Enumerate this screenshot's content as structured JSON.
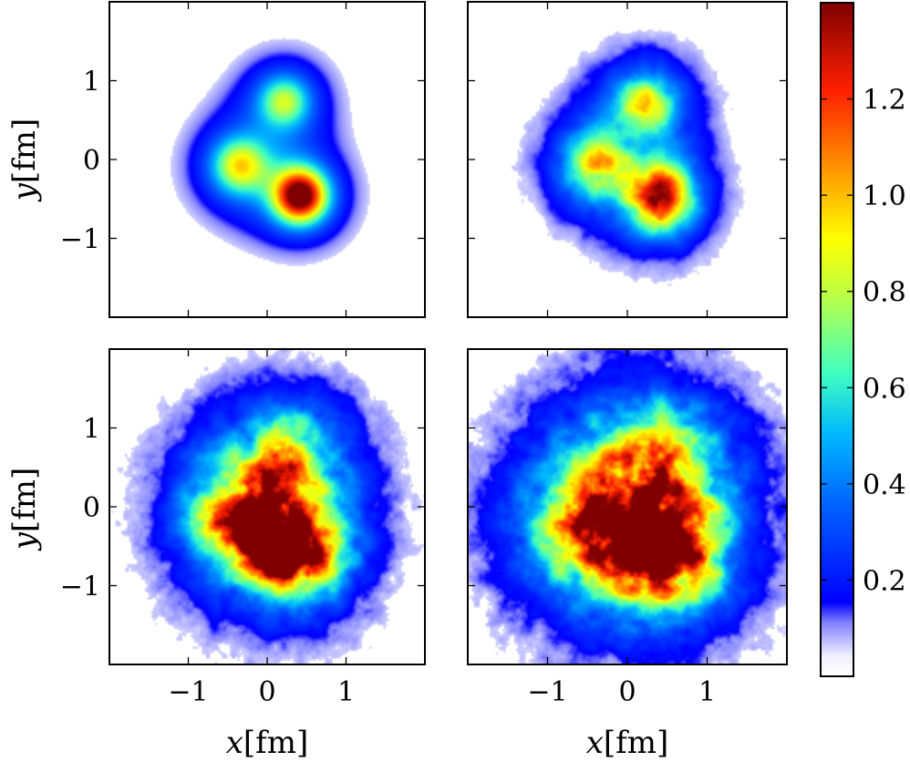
{
  "figure": {
    "axes": {
      "x_label_var": "x",
      "x_label_unit": "[fm]",
      "y_label_var": "y",
      "y_label_unit": "[fm]",
      "tick_labels": [
        "−1",
        "0",
        "1"
      ]
    },
    "colorbar": {
      "range": [
        0.0,
        1.4
      ],
      "ticks": [
        0.2,
        0.4,
        0.6,
        0.8,
        1.0,
        1.2
      ],
      "tick_labels": [
        "0.2",
        "0.4",
        "0.6",
        "0.8",
        "1.0",
        "1.2"
      ],
      "colormap": "jet (white at low end)"
    }
  },
  "chart_data": [
    {
      "type": "heatmap",
      "panel": "top-left",
      "xlim": [
        -2,
        2
      ],
      "ylim": [
        -2,
        2
      ],
      "xticks": [
        -1,
        0,
        1
      ],
      "yticks": [
        -1,
        0,
        1
      ],
      "show_xticklabels": false,
      "show_yticklabels": true,
      "ylabel": "y[fm]",
      "noise": 0.0,
      "blobs": [
        {
          "x": -0.35,
          "y": -0.08,
          "peak": 0.62,
          "sigma": 0.24
        },
        {
          "x": 0.22,
          "y": 0.74,
          "peak": 0.52,
          "sigma": 0.22
        },
        {
          "x": 0.42,
          "y": -0.46,
          "peak": 1.25,
          "sigma": 0.24
        }
      ]
    },
    {
      "type": "heatmap",
      "panel": "top-right",
      "xlim": [
        -2,
        2
      ],
      "ylim": [
        -2,
        2
      ],
      "xticks": [
        -1,
        0,
        1
      ],
      "yticks": [
        -1,
        0,
        1
      ],
      "show_xticklabels": false,
      "show_yticklabels": false,
      "noise": 0.35,
      "blobs": [
        {
          "x": -0.4,
          "y": -0.08,
          "peak": 0.62,
          "sigma": 0.27
        },
        {
          "x": 0.25,
          "y": 0.72,
          "peak": 0.58,
          "sigma": 0.26
        },
        {
          "x": 0.42,
          "y": -0.5,
          "peak": 1.1,
          "sigma": 0.28
        }
      ]
    },
    {
      "type": "heatmap",
      "panel": "bottom-left",
      "xlim": [
        -2,
        2
      ],
      "ylim": [
        -2,
        2
      ],
      "xticks": [
        -1,
        0,
        1
      ],
      "yticks": [
        -1,
        0,
        1
      ],
      "show_xticklabels": true,
      "show_yticklabels": true,
      "xlabel": "x[fm]",
      "ylabel": "y[fm]",
      "noise": 0.55,
      "blobs": [
        {
          "x": -0.3,
          "y": -0.1,
          "peak": 0.9,
          "sigma": 0.42
        },
        {
          "x": 0.35,
          "y": -0.55,
          "peak": 1.25,
          "sigma": 0.38
        },
        {
          "x": 0.3,
          "y": 0.65,
          "peak": 0.45,
          "sigma": 0.35
        }
      ]
    },
    {
      "type": "heatmap",
      "panel": "bottom-right",
      "xlim": [
        -2,
        2
      ],
      "ylim": [
        -2,
        2
      ],
      "xticks": [
        -1,
        0,
        1
      ],
      "yticks": [
        -1,
        0,
        1
      ],
      "show_xticklabels": true,
      "show_yticklabels": false,
      "xlabel": "x[fm]",
      "noise": 0.6,
      "blobs": [
        {
          "x": -0.4,
          "y": -0.2,
          "peak": 0.85,
          "sigma": 0.5
        },
        {
          "x": 0.45,
          "y": -0.55,
          "peak": 1.2,
          "sigma": 0.45
        },
        {
          "x": 0.35,
          "y": 0.6,
          "peak": 0.6,
          "sigma": 0.45
        }
      ]
    }
  ]
}
